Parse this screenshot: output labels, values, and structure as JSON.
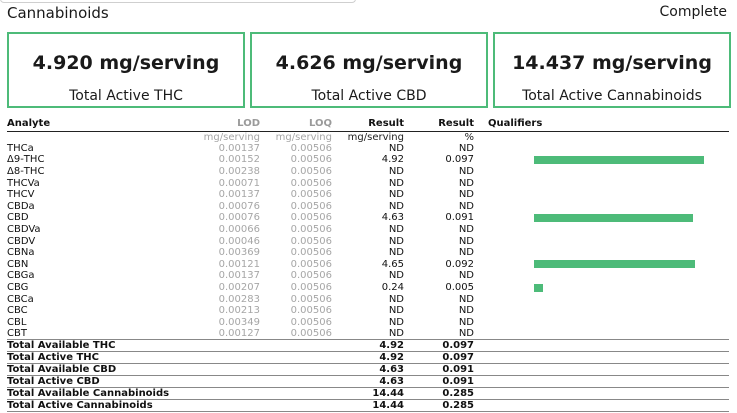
{
  "section_title": "Cannabinoids",
  "status": "Complete",
  "accent_color": "#4dbb79",
  "summary": [
    {
      "value": "4.920 mg/serving",
      "label": "Total Active THC"
    },
    {
      "value": "4.626 mg/serving",
      "label": "Total Active CBD"
    },
    {
      "value": "14.437 mg/serving",
      "label": "Total Active Cannabinoids"
    }
  ],
  "table": {
    "headers": {
      "analyte": "Analyte",
      "lod": "LOD",
      "loq": "LOQ",
      "result": "Result",
      "result_pct": "Result",
      "qualifiers": "Qualifiers"
    },
    "units": {
      "lod": "mg/serving",
      "loq": "mg/serving",
      "result": "mg/serving",
      "result_pct": "%"
    },
    "rows": [
      {
        "analyte": "THCa",
        "lod": "0.00137",
        "loq": "0.00506",
        "result": "ND",
        "pct": "ND",
        "bar": 0
      },
      {
        "analyte": "Δ9-THC",
        "lod": "0.00152",
        "loq": "0.00506",
        "result": "4.92",
        "pct": "0.097",
        "bar": 0.097
      },
      {
        "analyte": "Δ8-THC",
        "lod": "0.00238",
        "loq": "0.00506",
        "result": "ND",
        "pct": "ND",
        "bar": 0
      },
      {
        "analyte": "THCVa",
        "lod": "0.00071",
        "loq": "0.00506",
        "result": "ND",
        "pct": "ND",
        "bar": 0
      },
      {
        "analyte": "THCV",
        "lod": "0.00137",
        "loq": "0.00506",
        "result": "ND",
        "pct": "ND",
        "bar": 0
      },
      {
        "analyte": "CBDa",
        "lod": "0.00076",
        "loq": "0.00506",
        "result": "ND",
        "pct": "ND",
        "bar": 0
      },
      {
        "analyte": "CBD",
        "lod": "0.00076",
        "loq": "0.00506",
        "result": "4.63",
        "pct": "0.091",
        "bar": 0.091
      },
      {
        "analyte": "CBDVa",
        "lod": "0.00066",
        "loq": "0.00506",
        "result": "ND",
        "pct": "ND",
        "bar": 0
      },
      {
        "analyte": "CBDV",
        "lod": "0.00046",
        "loq": "0.00506",
        "result": "ND",
        "pct": "ND",
        "bar": 0
      },
      {
        "analyte": "CBNa",
        "lod": "0.00369",
        "loq": "0.00506",
        "result": "ND",
        "pct": "ND",
        "bar": 0
      },
      {
        "analyte": "CBN",
        "lod": "0.00121",
        "loq": "0.00506",
        "result": "4.65",
        "pct": "0.092",
        "bar": 0.092
      },
      {
        "analyte": "CBGa",
        "lod": "0.00137",
        "loq": "0.00506",
        "result": "ND",
        "pct": "ND",
        "bar": 0
      },
      {
        "analyte": "CBG",
        "lod": "0.00207",
        "loq": "0.00506",
        "result": "0.24",
        "pct": "0.005",
        "bar": 0.005
      },
      {
        "analyte": "CBCa",
        "lod": "0.00283",
        "loq": "0.00506",
        "result": "ND",
        "pct": "ND",
        "bar": 0
      },
      {
        "analyte": "CBC",
        "lod": "0.00213",
        "loq": "0.00506",
        "result": "ND",
        "pct": "ND",
        "bar": 0
      },
      {
        "analyte": "CBL",
        "lod": "0.00349",
        "loq": "0.00506",
        "result": "ND",
        "pct": "ND",
        "bar": 0
      },
      {
        "analyte": "CBT",
        "lod": "0.00127",
        "loq": "0.00506",
        "result": "ND",
        "pct": "ND",
        "bar": 0
      }
    ],
    "totals": [
      {
        "label": "Total Available THC",
        "result": "4.92",
        "pct": "0.097"
      },
      {
        "label": "Total Active THC",
        "result": "4.92",
        "pct": "0.097"
      },
      {
        "label": "Total Available CBD",
        "result": "4.63",
        "pct": "0.091"
      },
      {
        "label": "Total Active CBD",
        "result": "4.63",
        "pct": "0.091"
      },
      {
        "label": "Total Available Cannabinoids",
        "result": "14.44",
        "pct": "0.285"
      },
      {
        "label": "Total Active Cannabinoids",
        "result": "14.44",
        "pct": "0.285"
      }
    ]
  }
}
